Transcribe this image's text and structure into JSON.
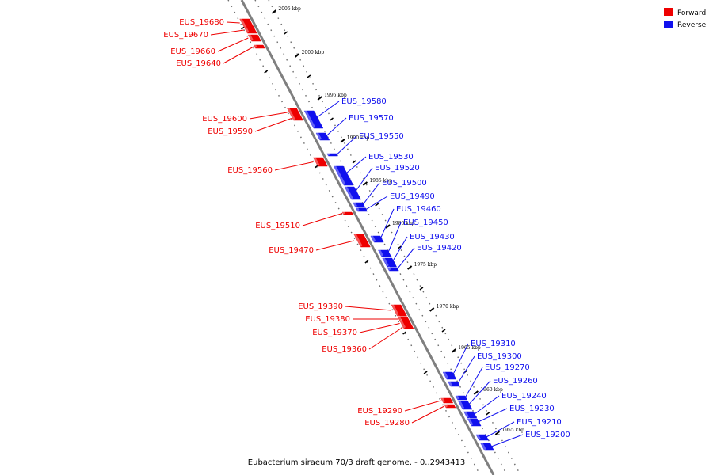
{
  "caption": "Eubacterium siraeum 70/3 draft genome. - 0..2943413",
  "colors": {
    "forward": "#ee0000",
    "reverse": "#1010ee",
    "axis": "#7f7f7f",
    "tick": "#000000"
  },
  "legend": [
    {
      "label": "Forward",
      "strand": "forward"
    },
    {
      "label": "Reverse",
      "strand": "reverse"
    }
  ],
  "ticks": [
    {
      "label": "2005 kbp",
      "kbp": 2005
    },
    {
      "label": "2000 kbp",
      "kbp": 2000
    },
    {
      "label": "1995 kbp",
      "kbp": 1995
    },
    {
      "label": "1990 kbp",
      "kbp": 1990
    },
    {
      "label": "1985 kbp",
      "kbp": 1985
    },
    {
      "label": "1980 kbp",
      "kbp": 1980
    },
    {
      "label": "1975 kbp",
      "kbp": 1975
    },
    {
      "label": "1970 kbp",
      "kbp": 1970
    },
    {
      "label": "1965 kbp",
      "kbp": 1965
    },
    {
      "label": "1960 kbp",
      "kbp": 1960
    },
    {
      "label": "1955 kbp",
      "kbp": 1955
    }
  ],
  "genes": [
    {
      "name": "EUS_19680",
      "strand": "forward"
    },
    {
      "name": "EUS_19670",
      "strand": "forward"
    },
    {
      "name": "EUS_19660",
      "strand": "forward"
    },
    {
      "name": "EUS_19640",
      "strand": "forward"
    },
    {
      "name": "EUS_19600",
      "strand": "forward"
    },
    {
      "name": "EUS_19590",
      "strand": "forward"
    },
    {
      "name": "EUS_19560",
      "strand": "forward"
    },
    {
      "name": "EUS_19510",
      "strand": "forward"
    },
    {
      "name": "EUS_19470",
      "strand": "forward"
    },
    {
      "name": "EUS_19390",
      "strand": "forward"
    },
    {
      "name": "EUS_19380",
      "strand": "forward"
    },
    {
      "name": "EUS_19370",
      "strand": "forward"
    },
    {
      "name": "EUS_19360",
      "strand": "forward"
    },
    {
      "name": "EUS_19290",
      "strand": "forward"
    },
    {
      "name": "EUS_19280",
      "strand": "forward"
    },
    {
      "name": "EUS_19580",
      "strand": "reverse"
    },
    {
      "name": "EUS_19570",
      "strand": "reverse"
    },
    {
      "name": "EUS_19550",
      "strand": "reverse"
    },
    {
      "name": "EUS_19530",
      "strand": "reverse"
    },
    {
      "name": "EUS_19520",
      "strand": "reverse"
    },
    {
      "name": "EUS_19500",
      "strand": "reverse"
    },
    {
      "name": "EUS_19490",
      "strand": "reverse"
    },
    {
      "name": "EUS_19460",
      "strand": "reverse"
    },
    {
      "name": "EUS_19450",
      "strand": "reverse"
    },
    {
      "name": "EUS_19430",
      "strand": "reverse"
    },
    {
      "name": "EUS_19420",
      "strand": "reverse"
    },
    {
      "name": "EUS_19310",
      "strand": "reverse"
    },
    {
      "name": "EUS_19300",
      "strand": "reverse"
    },
    {
      "name": "EUS_19270",
      "strand": "reverse"
    },
    {
      "name": "EUS_19260",
      "strand": "reverse"
    },
    {
      "name": "EUS_19240",
      "strand": "reverse"
    },
    {
      "name": "EUS_19230",
      "strand": "reverse"
    },
    {
      "name": "EUS_19210",
      "strand": "reverse"
    },
    {
      "name": "EUS_19200",
      "strand": "reverse"
    }
  ]
}
